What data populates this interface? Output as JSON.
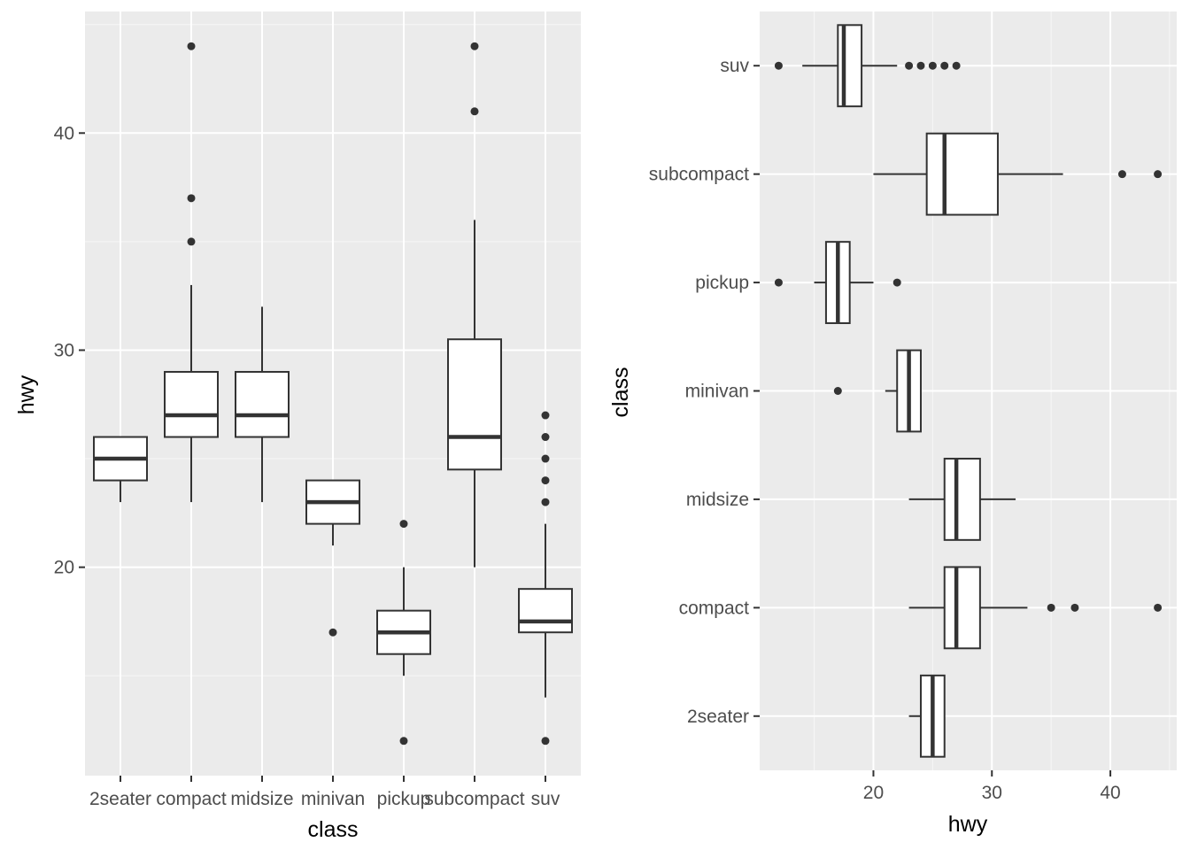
{
  "chart_data": [
    {
      "type": "boxplot",
      "orientation": "vertical",
      "xlabel": "class",
      "ylabel": "hwy",
      "ylim": [
        10.4,
        45.6
      ],
      "y_ticks": [
        20,
        30,
        40
      ],
      "categories": [
        "2seater",
        "compact",
        "midsize",
        "minivan",
        "pickup",
        "subcompact",
        "suv"
      ],
      "boxes": [
        {
          "category": "2seater",
          "min": 23,
          "q1": 24,
          "median": 25,
          "q3": 26,
          "max": 26,
          "outliers": []
        },
        {
          "category": "compact",
          "min": 23,
          "q1": 26,
          "median": 27,
          "q3": 29,
          "max": 33,
          "outliers": [
            35,
            37,
            44
          ]
        },
        {
          "category": "midsize",
          "min": 23,
          "q1": 26,
          "median": 27,
          "q3": 29,
          "max": 32,
          "outliers": []
        },
        {
          "category": "minivan",
          "min": 21,
          "q1": 22,
          "median": 23,
          "q3": 24,
          "max": 24,
          "outliers": [
            17
          ]
        },
        {
          "category": "pickup",
          "min": 15,
          "q1": 16,
          "median": 17,
          "q3": 18,
          "max": 20,
          "outliers": [
            12,
            22
          ]
        },
        {
          "category": "subcompact",
          "min": 20,
          "q1": 24.5,
          "median": 26,
          "q3": 30.5,
          "max": 36,
          "outliers": [
            41,
            44
          ]
        },
        {
          "category": "suv",
          "min": 14,
          "q1": 17,
          "median": 17.5,
          "q3": 19,
          "max": 22,
          "outliers": [
            12,
            23,
            24,
            25,
            26,
            27
          ]
        }
      ],
      "grid": true,
      "background": "#ebebeb",
      "box_fill": "#ffffff",
      "line_color": "#333333"
    },
    {
      "type": "boxplot",
      "orientation": "horizontal",
      "xlabel": "hwy",
      "ylabel": "class",
      "xlim": [
        10.4,
        45.6
      ],
      "x_ticks": [
        20,
        30,
        40
      ],
      "categories": [
        "2seater",
        "compact",
        "midsize",
        "minivan",
        "pickup",
        "subcompact",
        "suv"
      ],
      "boxes": [
        {
          "category": "2seater",
          "min": 23,
          "q1": 24,
          "median": 25,
          "q3": 26,
          "max": 26,
          "outliers": []
        },
        {
          "category": "compact",
          "min": 23,
          "q1": 26,
          "median": 27,
          "q3": 29,
          "max": 33,
          "outliers": [
            35,
            37,
            44
          ]
        },
        {
          "category": "midsize",
          "min": 23,
          "q1": 26,
          "median": 27,
          "q3": 29,
          "max": 32,
          "outliers": []
        },
        {
          "category": "minivan",
          "min": 21,
          "q1": 22,
          "median": 23,
          "q3": 24,
          "max": 24,
          "outliers": [
            17
          ]
        },
        {
          "category": "pickup",
          "min": 15,
          "q1": 16,
          "median": 17,
          "q3": 18,
          "max": 20,
          "outliers": [
            12,
            22
          ]
        },
        {
          "category": "subcompact",
          "min": 20,
          "q1": 24.5,
          "median": 26,
          "q3": 30.5,
          "max": 36,
          "outliers": [
            41,
            44
          ]
        },
        {
          "category": "suv",
          "min": 14,
          "q1": 17,
          "median": 17.5,
          "q3": 19,
          "max": 22,
          "outliers": [
            12,
            23,
            24,
            25,
            26,
            27
          ]
        }
      ],
      "grid": true,
      "background": "#ebebeb",
      "box_fill": "#ffffff",
      "line_color": "#333333"
    }
  ]
}
